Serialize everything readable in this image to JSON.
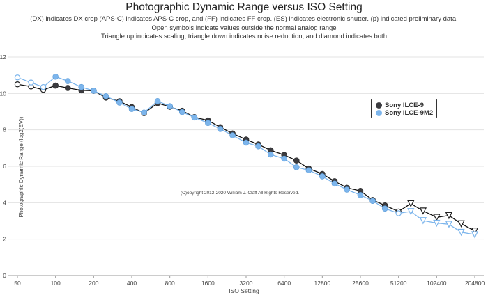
{
  "chart_data": {
    "type": "line",
    "title": "Photographic Dynamic Range versus ISO Setting",
    "subtitle_lines": [
      "(DX) indicates DX crop (APS-C) indicates APS-C crop, and (FF) indicates FF crop. (ES) indicates electronic shutter. (p) indicated preliminary data.",
      "Open symbols indicate values outside the normal analog range",
      "Triangle up indicates scaling, triangle down indicates noise reduction, and diamond indicates both"
    ],
    "xlabel": "ISO Setting",
    "ylabel": "Photographic Dynamic Range (log2(EV))",
    "x_scale": "log2",
    "x_ticks": [
      "50",
      "100",
      "200",
      "400",
      "800",
      "1600",
      "3200",
      "6400",
      "12800",
      "25600",
      "51200",
      "102400",
      "204800"
    ],
    "ylim": [
      0,
      12
    ],
    "y_ticks": [
      "0",
      "2",
      "4",
      "6",
      "8",
      "10",
      "12"
    ],
    "grid": "horizontal",
    "legend_position": "right",
    "annotation": "(C)opyright 2012-2020 William J. Claff All Rights Reserved.",
    "series": [
      {
        "name": "Sony ILCE-9",
        "color": "#3b3b3f",
        "points": [
          {
            "iso": 50,
            "y": 10.5,
            "marker": "open-circle"
          },
          {
            "iso": 64,
            "y": 10.38,
            "marker": "open-circle"
          },
          {
            "iso": 80,
            "y": 10.2,
            "marker": "open-circle"
          },
          {
            "iso": 100,
            "y": 10.43,
            "marker": "circle"
          },
          {
            "iso": 125,
            "y": 10.3,
            "marker": "circle"
          },
          {
            "iso": 160,
            "y": 10.17,
            "marker": "circle"
          },
          {
            "iso": 200,
            "y": 10.15,
            "marker": "circle"
          },
          {
            "iso": 250,
            "y": 9.77,
            "marker": "circle"
          },
          {
            "iso": 320,
            "y": 9.57,
            "marker": "circle"
          },
          {
            "iso": 400,
            "y": 9.25,
            "marker": "circle"
          },
          {
            "iso": 500,
            "y": 8.92,
            "marker": "circle"
          },
          {
            "iso": 640,
            "y": 9.47,
            "marker": "circle"
          },
          {
            "iso": 800,
            "y": 9.27,
            "marker": "circle"
          },
          {
            "iso": 1000,
            "y": 9.05,
            "marker": "circle"
          },
          {
            "iso": 1250,
            "y": 8.7,
            "marker": "circle"
          },
          {
            "iso": 1600,
            "y": 8.52,
            "marker": "circle"
          },
          {
            "iso": 2000,
            "y": 8.15,
            "marker": "circle"
          },
          {
            "iso": 2500,
            "y": 7.8,
            "marker": "circle"
          },
          {
            "iso": 3200,
            "y": 7.47,
            "marker": "circle"
          },
          {
            "iso": 4000,
            "y": 7.2,
            "marker": "circle"
          },
          {
            "iso": 5000,
            "y": 6.88,
            "marker": "circle"
          },
          {
            "iso": 6400,
            "y": 6.62,
            "marker": "circle"
          },
          {
            "iso": 8000,
            "y": 6.32,
            "marker": "circle"
          },
          {
            "iso": 10000,
            "y": 5.88,
            "marker": "circle"
          },
          {
            "iso": 12800,
            "y": 5.58,
            "marker": "circle"
          },
          {
            "iso": 16000,
            "y": 5.18,
            "marker": "circle"
          },
          {
            "iso": 20000,
            "y": 4.82,
            "marker": "circle"
          },
          {
            "iso": 25600,
            "y": 4.65,
            "marker": "circle"
          },
          {
            "iso": 32000,
            "y": 4.15,
            "marker": "circle"
          },
          {
            "iso": 40000,
            "y": 3.85,
            "marker": "circle"
          },
          {
            "iso": 51200,
            "y": 3.52,
            "marker": "open-circle"
          },
          {
            "iso": 64000,
            "y": 3.95,
            "marker": "open-triangle-down"
          },
          {
            "iso": 80000,
            "y": 3.55,
            "marker": "open-triangle-down"
          },
          {
            "iso": 102400,
            "y": 3.2,
            "marker": "open-triangle-down"
          },
          {
            "iso": 128000,
            "y": 3.3,
            "marker": "open-triangle-down"
          },
          {
            "iso": 160000,
            "y": 2.85,
            "marker": "open-triangle-down"
          },
          {
            "iso": 204800,
            "y": 2.45,
            "marker": "open-triangle-down"
          }
        ]
      },
      {
        "name": "Sony ILCE-9M2",
        "color": "#7cb5ec",
        "points": [
          {
            "iso": 50,
            "y": 10.88,
            "marker": "open-circle"
          },
          {
            "iso": 64,
            "y": 10.6,
            "marker": "open-circle"
          },
          {
            "iso": 80,
            "y": 10.35,
            "marker": "open-circle"
          },
          {
            "iso": 100,
            "y": 10.92,
            "marker": "circle"
          },
          {
            "iso": 125,
            "y": 10.68,
            "marker": "circle"
          },
          {
            "iso": 160,
            "y": 10.35,
            "marker": "circle"
          },
          {
            "iso": 200,
            "y": 10.15,
            "marker": "circle"
          },
          {
            "iso": 250,
            "y": 9.85,
            "marker": "circle"
          },
          {
            "iso": 320,
            "y": 9.5,
            "marker": "circle"
          },
          {
            "iso": 400,
            "y": 9.15,
            "marker": "circle"
          },
          {
            "iso": 500,
            "y": 8.95,
            "marker": "circle"
          },
          {
            "iso": 640,
            "y": 9.58,
            "marker": "circle"
          },
          {
            "iso": 800,
            "y": 9.3,
            "marker": "circle"
          },
          {
            "iso": 1000,
            "y": 8.98,
            "marker": "circle"
          },
          {
            "iso": 1250,
            "y": 8.68,
            "marker": "circle"
          },
          {
            "iso": 1600,
            "y": 8.38,
            "marker": "circle"
          },
          {
            "iso": 2000,
            "y": 8.05,
            "marker": "circle"
          },
          {
            "iso": 2500,
            "y": 7.7,
            "marker": "circle"
          },
          {
            "iso": 3200,
            "y": 7.3,
            "marker": "circle"
          },
          {
            "iso": 4000,
            "y": 7.1,
            "marker": "circle"
          },
          {
            "iso": 5000,
            "y": 6.65,
            "marker": "circle"
          },
          {
            "iso": 6400,
            "y": 6.42,
            "marker": "circle"
          },
          {
            "iso": 8000,
            "y": 5.95,
            "marker": "circle"
          },
          {
            "iso": 10000,
            "y": 5.78,
            "marker": "circle"
          },
          {
            "iso": 12800,
            "y": 5.45,
            "marker": "circle"
          },
          {
            "iso": 16000,
            "y": 5.05,
            "marker": "circle"
          },
          {
            "iso": 20000,
            "y": 4.72,
            "marker": "circle"
          },
          {
            "iso": 25600,
            "y": 4.42,
            "marker": "circle"
          },
          {
            "iso": 32000,
            "y": 4.1,
            "marker": "circle"
          },
          {
            "iso": 40000,
            "y": 3.68,
            "marker": "circle"
          },
          {
            "iso": 51200,
            "y": 3.42,
            "marker": "open-circle"
          },
          {
            "iso": 64000,
            "y": 3.52,
            "marker": "open-triangle-down"
          },
          {
            "iso": 80000,
            "y": 3.02,
            "marker": "open-triangle-down"
          },
          {
            "iso": 102400,
            "y": 2.88,
            "marker": "open-triangle-down"
          },
          {
            "iso": 128000,
            "y": 2.82,
            "marker": "open-triangle-down"
          },
          {
            "iso": 160000,
            "y": 2.38,
            "marker": "open-triangle-down"
          },
          {
            "iso": 204800,
            "y": 2.25,
            "marker": "open-triangle-down"
          }
        ]
      }
    ]
  }
}
